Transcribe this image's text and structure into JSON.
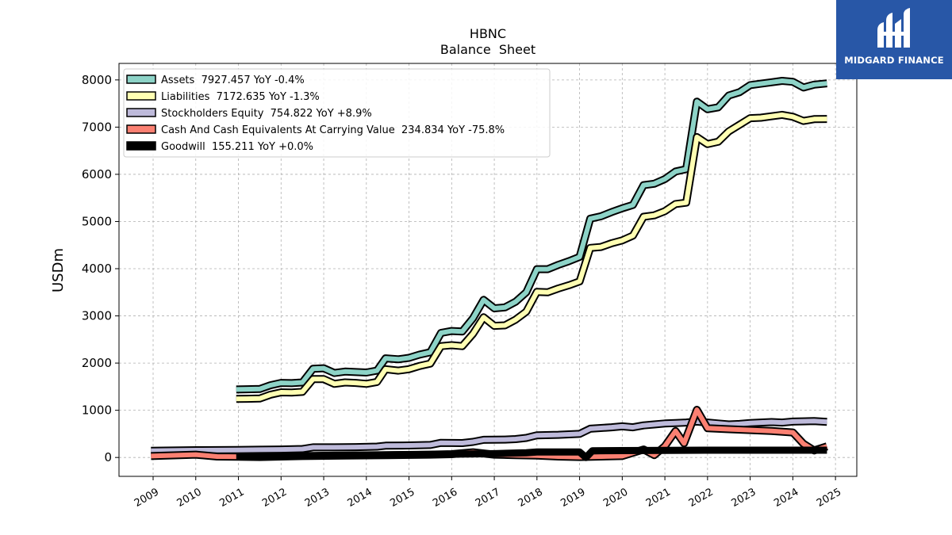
{
  "chart_data": {
    "type": "line",
    "title": "HBNC",
    "subtitle": "Balance  Sheet",
    "ylabel": "USDm",
    "xlabel": "",
    "xlim": [
      2008.2,
      2025.5
    ],
    "ylim": [
      -400,
      8350
    ],
    "x_ticks": [
      2009,
      2010,
      2011,
      2012,
      2013,
      2014,
      2015,
      2016,
      2017,
      2018,
      2019,
      2020,
      2021,
      2022,
      2023,
      2024,
      2025
    ],
    "y_ticks": [
      0,
      1000,
      2000,
      3000,
      4000,
      5000,
      6000,
      7000,
      8000
    ],
    "grid": true,
    "legend_position": "top-left",
    "series": [
      {
        "name": "Assets",
        "legend_label": "Assets  7927.457 YoY -0.4%",
        "color": "#8dd3c7",
        "points": [
          [
            2010.95,
            1440
          ],
          [
            2011.2,
            1445
          ],
          [
            2011.5,
            1450
          ],
          [
            2011.75,
            1530
          ],
          [
            2012.0,
            1580
          ],
          [
            2012.25,
            1575
          ],
          [
            2012.5,
            1590
          ],
          [
            2012.75,
            1880
          ],
          [
            2013.0,
            1890
          ],
          [
            2013.25,
            1790
          ],
          [
            2013.5,
            1820
          ],
          [
            2013.75,
            1810
          ],
          [
            2014.0,
            1800
          ],
          [
            2014.25,
            1840
          ],
          [
            2014.45,
            2100
          ],
          [
            2014.75,
            2080
          ],
          [
            2015.0,
            2110
          ],
          [
            2015.25,
            2180
          ],
          [
            2015.5,
            2230
          ],
          [
            2015.75,
            2640
          ],
          [
            2016.0,
            2680
          ],
          [
            2016.25,
            2670
          ],
          [
            2016.5,
            2950
          ],
          [
            2016.75,
            3340
          ],
          [
            2017.0,
            3160
          ],
          [
            2017.25,
            3180
          ],
          [
            2017.5,
            3300
          ],
          [
            2017.75,
            3500
          ],
          [
            2018.0,
            3990
          ],
          [
            2018.25,
            3990
          ],
          [
            2018.5,
            4080
          ],
          [
            2018.75,
            4160
          ],
          [
            2019.0,
            4250
          ],
          [
            2019.25,
            5060
          ],
          [
            2019.5,
            5110
          ],
          [
            2019.75,
            5200
          ],
          [
            2020.0,
            5280
          ],
          [
            2020.25,
            5350
          ],
          [
            2020.5,
            5770
          ],
          [
            2020.75,
            5800
          ],
          [
            2021.0,
            5900
          ],
          [
            2021.25,
            6060
          ],
          [
            2021.5,
            6110
          ],
          [
            2021.75,
            7540
          ],
          [
            2022.0,
            7380
          ],
          [
            2022.25,
            7420
          ],
          [
            2022.5,
            7670
          ],
          [
            2022.75,
            7740
          ],
          [
            2023.0,
            7890
          ],
          [
            2023.25,
            7920
          ],
          [
            2023.5,
            7950
          ],
          [
            2023.75,
            7980
          ],
          [
            2024.0,
            7960
          ],
          [
            2024.25,
            7840
          ],
          [
            2024.5,
            7900
          ],
          [
            2024.8,
            7927
          ]
        ]
      },
      {
        "name": "Liabilities",
        "legend_label": "Liabilities  7172.635 YoY -1.3%",
        "color": "#ffffb3",
        "points": [
          [
            2010.95,
            1240
          ],
          [
            2011.2,
            1245
          ],
          [
            2011.5,
            1250
          ],
          [
            2011.75,
            1330
          ],
          [
            2012.0,
            1380
          ],
          [
            2012.25,
            1375
          ],
          [
            2012.5,
            1390
          ],
          [
            2012.75,
            1660
          ],
          [
            2013.0,
            1660
          ],
          [
            2013.25,
            1560
          ],
          [
            2013.5,
            1590
          ],
          [
            2013.75,
            1580
          ],
          [
            2014.0,
            1560
          ],
          [
            2014.25,
            1600
          ],
          [
            2014.45,
            1870
          ],
          [
            2014.75,
            1840
          ],
          [
            2015.0,
            1870
          ],
          [
            2015.25,
            1940
          ],
          [
            2015.5,
            1990
          ],
          [
            2015.75,
            2360
          ],
          [
            2016.0,
            2380
          ],
          [
            2016.25,
            2360
          ],
          [
            2016.5,
            2620
          ],
          [
            2016.75,
            2970
          ],
          [
            2017.0,
            2790
          ],
          [
            2017.25,
            2800
          ],
          [
            2017.5,
            2920
          ],
          [
            2017.75,
            3090
          ],
          [
            2018.0,
            3510
          ],
          [
            2018.25,
            3500
          ],
          [
            2018.5,
            3580
          ],
          [
            2018.75,
            3650
          ],
          [
            2019.0,
            3730
          ],
          [
            2019.25,
            4440
          ],
          [
            2019.5,
            4460
          ],
          [
            2019.75,
            4540
          ],
          [
            2020.0,
            4600
          ],
          [
            2020.25,
            4700
          ],
          [
            2020.5,
            5100
          ],
          [
            2020.75,
            5130
          ],
          [
            2021.0,
            5220
          ],
          [
            2021.25,
            5370
          ],
          [
            2021.5,
            5400
          ],
          [
            2021.75,
            6790
          ],
          [
            2022.0,
            6640
          ],
          [
            2022.25,
            6690
          ],
          [
            2022.5,
            6910
          ],
          [
            2022.75,
            7050
          ],
          [
            2023.0,
            7190
          ],
          [
            2023.25,
            7200
          ],
          [
            2023.5,
            7230
          ],
          [
            2023.75,
            7260
          ],
          [
            2024.0,
            7220
          ],
          [
            2024.25,
            7130
          ],
          [
            2024.5,
            7170
          ],
          [
            2024.8,
            7172
          ]
        ]
      },
      {
        "name": "Stockholders Equity",
        "legend_label": "Stockholders Equity  754.822 YoY +8.9%",
        "color": "#bebada",
        "points": [
          [
            2008.95,
            140
          ],
          [
            2010.0,
            155
          ],
          [
            2010.95,
            160
          ],
          [
            2011.5,
            165
          ],
          [
            2012.0,
            170
          ],
          [
            2012.5,
            180
          ],
          [
            2012.75,
            215
          ],
          [
            2013.25,
            215
          ],
          [
            2013.75,
            220
          ],
          [
            2014.25,
            230
          ],
          [
            2014.45,
            250
          ],
          [
            2015.0,
            255
          ],
          [
            2015.5,
            265
          ],
          [
            2015.75,
            310
          ],
          [
            2016.25,
            305
          ],
          [
            2016.5,
            330
          ],
          [
            2016.75,
            375
          ],
          [
            2017.25,
            380
          ],
          [
            2017.5,
            390
          ],
          [
            2017.75,
            415
          ],
          [
            2018.0,
            470
          ],
          [
            2018.5,
            480
          ],
          [
            2019.0,
            500
          ],
          [
            2019.25,
            610
          ],
          [
            2019.75,
            640
          ],
          [
            2020.0,
            660
          ],
          [
            2020.25,
            640
          ],
          [
            2020.5,
            680
          ],
          [
            2020.75,
            700
          ],
          [
            2021.0,
            720
          ],
          [
            2021.25,
            730
          ],
          [
            2021.5,
            740
          ],
          [
            2021.75,
            760
          ],
          [
            2022.0,
            740
          ],
          [
            2022.25,
            720
          ],
          [
            2022.5,
            700
          ],
          [
            2022.75,
            710
          ],
          [
            2023.0,
            730
          ],
          [
            2023.25,
            740
          ],
          [
            2023.5,
            750
          ],
          [
            2023.75,
            740
          ],
          [
            2024.0,
            760
          ],
          [
            2024.5,
            770
          ],
          [
            2024.8,
            755
          ]
        ]
      },
      {
        "name": "Cash And Cash Equivalents At Carrying Value",
        "legend_label": "Cash And Cash Equivalents At Carrying Value  234.834 YoY -75.8%",
        "color": "#fb8072",
        "points": [
          [
            2008.95,
            30
          ],
          [
            2010.0,
            60
          ],
          [
            2010.5,
            20
          ],
          [
            2011.0,
            15
          ],
          [
            2011.5,
            10
          ],
          [
            2012.5,
            30
          ],
          [
            2013.5,
            40
          ],
          [
            2014.5,
            50
          ],
          [
            2015.5,
            60
          ],
          [
            2016.0,
            70
          ],
          [
            2016.5,
            110
          ],
          [
            2017.0,
            60
          ],
          [
            2017.5,
            50
          ],
          [
            2018.0,
            40
          ],
          [
            2018.5,
            20
          ],
          [
            2019.0,
            10
          ],
          [
            2019.5,
            20
          ],
          [
            2020.0,
            30
          ],
          [
            2020.5,
            170
          ],
          [
            2020.75,
            50
          ],
          [
            2021.0,
            240
          ],
          [
            2021.25,
            560
          ],
          [
            2021.45,
            300
          ],
          [
            2021.75,
            1010
          ],
          [
            2022.0,
            620
          ],
          [
            2022.5,
            600
          ],
          [
            2023.0,
            580
          ],
          [
            2023.5,
            560
          ],
          [
            2024.0,
            530
          ],
          [
            2024.25,
            290
          ],
          [
            2024.5,
            150
          ],
          [
            2024.8,
            235
          ]
        ]
      },
      {
        "name": "Goodwill",
        "legend_label": "Goodwill  155.211 YoY +0.0%",
        "color": "#000000",
        "points": [
          [
            2010.95,
            20
          ],
          [
            2011.5,
            25
          ],
          [
            2012.5,
            30
          ],
          [
            2013.0,
            40
          ],
          [
            2014.0,
            50
          ],
          [
            2015.0,
            60
          ],
          [
            2016.0,
            70
          ],
          [
            2017.0,
            80
          ],
          [
            2017.75,
            100
          ],
          [
            2018.0,
            115
          ],
          [
            2018.5,
            115
          ],
          [
            2019.0,
            115
          ],
          [
            2019.15,
            0
          ],
          [
            2019.3,
            140
          ],
          [
            2020.0,
            145
          ],
          [
            2021.0,
            150
          ],
          [
            2022.0,
            155
          ],
          [
            2023.0,
            155
          ],
          [
            2024.0,
            155
          ],
          [
            2024.8,
            155
          ]
        ]
      }
    ]
  },
  "brand": {
    "name": "MIDGARD FINANCE",
    "logo_icon": "midgard-finance-logo-icon",
    "color": "#2857a7"
  }
}
